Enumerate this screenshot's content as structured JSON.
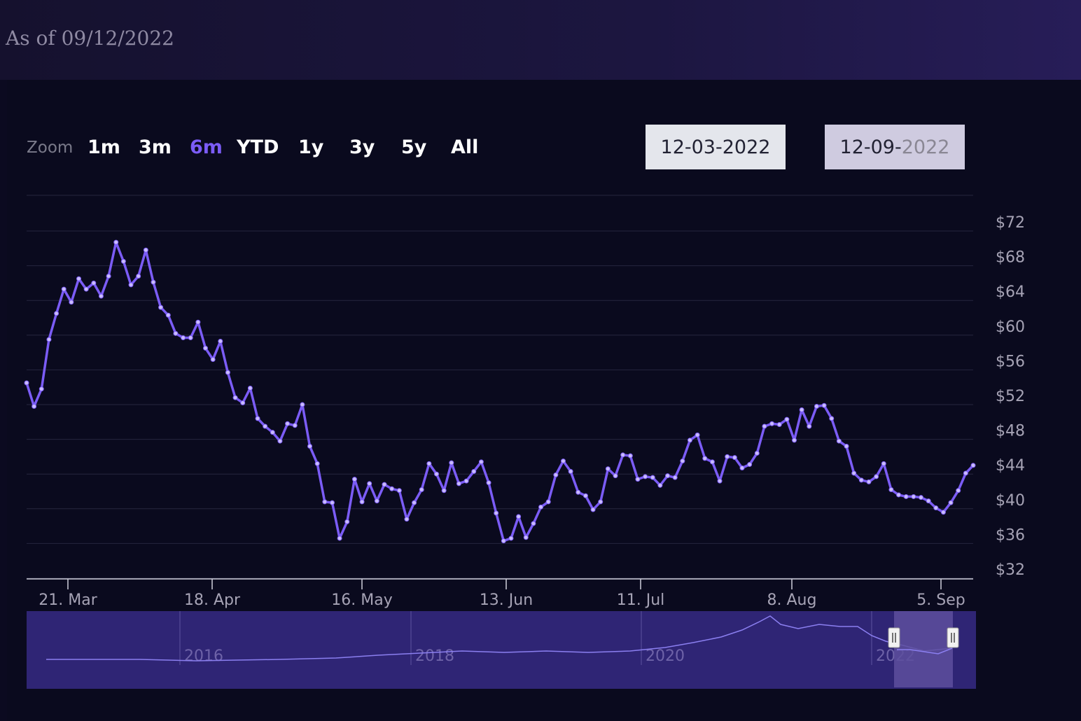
{
  "header": {
    "as_of": "As of 09/12/2022"
  },
  "zoom": {
    "label": "Zoom",
    "buttons": [
      {
        "label": "1m",
        "active": false
      },
      {
        "label": "3m",
        "active": false
      },
      {
        "label": "6m",
        "active": true
      },
      {
        "label": "YTD",
        "active": false
      },
      {
        "label": "1y",
        "active": false
      },
      {
        "label": "3y",
        "active": false
      },
      {
        "label": "5y",
        "active": false
      },
      {
        "label": "All",
        "active": false
      }
    ]
  },
  "range": {
    "from": "12-03-2022",
    "to_main": "12-09-",
    "to_dim": "2022"
  },
  "colors": {
    "line": "#7b5cf6",
    "navigator_bg": "#2f2575",
    "navigator_selection": "#5d4f9e",
    "grid": "#26263e"
  },
  "chart_data": {
    "type": "line",
    "y_ticks": [
      "$32",
      "$36",
      "$40",
      "$44",
      "$48",
      "$52",
      "$56",
      "$60",
      "$64",
      "$68",
      "$72"
    ],
    "ylim": [
      32,
      72
    ],
    "x_ticks": [
      "21. Mar",
      "18. Apr",
      "16. May",
      "13. Jun",
      "11. Jul",
      "8. Aug",
      "5. Sep"
    ],
    "navigator_years": [
      "2016",
      "2018",
      "2020",
      "2022"
    ],
    "series": [
      {
        "values": [
          54.5,
          51.8,
          53.8,
          59.5,
          62.5,
          65.3,
          63.8,
          66.5,
          65.3,
          66,
          64.5,
          66.8,
          70.7,
          68.5,
          65.8,
          66.8,
          69.8,
          66.1,
          63.2,
          62.3,
          60.2,
          59.7,
          59.7,
          61.5,
          58.5,
          57.2,
          59.3,
          55.7,
          52.8,
          52.2,
          53.9,
          50.4,
          49.5,
          48.8,
          47.8,
          49.8,
          49.6,
          52.0,
          47.2,
          45.2,
          40.8,
          40.7,
          36.6,
          38.5,
          43.4,
          40.8,
          42.9,
          40.9,
          42.8,
          42.3,
          42.1,
          38.8,
          40.7,
          42.2,
          45.2,
          44.0,
          42.1,
          45.3,
          42.9,
          43.2,
          44.3,
          45.4,
          43.0,
          39.5,
          36.3,
          36.6,
          39.1,
          36.7,
          38.3,
          40.2,
          40.8,
          43.9,
          45.5,
          44.3,
          41.9,
          41.5,
          39.9,
          40.8,
          44.6,
          43.8,
          46.2,
          46.1,
          43.4,
          43.7,
          43.6,
          42.7,
          43.8,
          43.6,
          45.5,
          47.9,
          48.5,
          45.8,
          45.4,
          43.2,
          46.0,
          45.9,
          44.7,
          45.1,
          46.4,
          49.5,
          49.8,
          49.7,
          50.3,
          47.9,
          51.4,
          49.5,
          51.8,
          51.9,
          50.4,
          47.8,
          47.2,
          44.1,
          43.3,
          43.1,
          43.7,
          45.2,
          42.2,
          41.6,
          41.4,
          41.4,
          41.3,
          40.9,
          40.1,
          39.6,
          40.7,
          42.1,
          44.1,
          45.0
        ]
      }
    ]
  }
}
